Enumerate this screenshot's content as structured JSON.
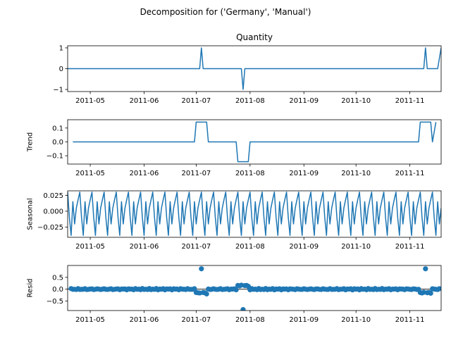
{
  "suptitle": "Decomposition for ('Germany', 'Manual')",
  "colors": {
    "line": "#1f77b4",
    "axis": "#000000",
    "background": "#ffffff"
  },
  "chart_data": [
    {
      "type": "line",
      "title": "Quantity",
      "ylabel": "",
      "xlim": [
        "2011-04-18",
        "2011-11-19"
      ],
      "ylim": [
        -1.1,
        1.1
      ],
      "yticks": [
        1,
        0,
        -1
      ],
      "ytick_labels": [
        "1",
        "0",
        "−1"
      ],
      "xticks": [
        "2011-05-01",
        "2011-06-01",
        "2011-07-01",
        "2011-08-01",
        "2011-09-01",
        "2011-10-01",
        "2011-11-01"
      ],
      "xtick_labels": [
        "2011-05",
        "2011-06",
        "2011-07",
        "2011-08",
        "2011-09",
        "2011-10",
        "2011-11"
      ],
      "series": [
        {
          "x": [
            "2011-04-18",
            "2011-07-03",
            "2011-07-04",
            "2011-07-05",
            "2011-07-27",
            "2011-07-28",
            "2011-07-29",
            "2011-11-09",
            "2011-11-10",
            "2011-11-11",
            "2011-11-17",
            "2011-11-19"
          ],
          "y": [
            0,
            0,
            1,
            0,
            0,
            -1,
            0,
            0,
            1,
            0,
            0,
            1
          ]
        }
      ]
    },
    {
      "type": "line",
      "title": "",
      "ylabel": "Trend",
      "xlim": [
        "2011-04-18",
        "2011-11-19"
      ],
      "ylim": [
        -0.16,
        0.16
      ],
      "yticks": [
        0.1,
        0.0,
        -0.1
      ],
      "ytick_labels": [
        "0.1",
        "0.0",
        "−0.1"
      ],
      "xticks": [
        "2011-05-01",
        "2011-06-01",
        "2011-07-01",
        "2011-08-01",
        "2011-09-01",
        "2011-10-01",
        "2011-11-01"
      ],
      "xtick_labels": [
        "2011-05",
        "2011-06",
        "2011-07",
        "2011-08",
        "2011-09",
        "2011-10",
        "2011-11"
      ],
      "series": [
        {
          "x": [
            "2011-04-21",
            "2011-06-30",
            "2011-07-01",
            "2011-07-07",
            "2011-07-08",
            "2011-07-24",
            "2011-07-25",
            "2011-07-31",
            "2011-08-01",
            "2011-11-06",
            "2011-11-07",
            "2011-11-13",
            "2011-11-14",
            "2011-11-16"
          ],
          "y": [
            0,
            0,
            0.143,
            0.143,
            0,
            0,
            -0.143,
            -0.143,
            0,
            0,
            0.143,
            0.143,
            0,
            0.143
          ]
        }
      ]
    },
    {
      "type": "line",
      "title": "",
      "ylabel": "Seasonal",
      "xlim": [
        "2011-04-18",
        "2011-11-19"
      ],
      "ylim": [
        -0.041,
        0.032
      ],
      "yticks": [
        0.025,
        0.0,
        -0.025
      ],
      "ytick_labels": [
        "0.025",
        "0.000",
        "−0.025"
      ],
      "xticks": [
        "2011-05-01",
        "2011-06-01",
        "2011-07-01",
        "2011-08-01",
        "2011-09-01",
        "2011-10-01",
        "2011-11-01"
      ],
      "xtick_labels": [
        "2011-05",
        "2011-06",
        "2011-07",
        "2011-08",
        "2011-09",
        "2011-10",
        "2011-11"
      ],
      "period_days": 7,
      "weekly_pattern": [
        0.03,
        -0.01,
        -0.038,
        0.015,
        -0.02,
        0.005,
        0.018
      ]
    },
    {
      "type": "scatter",
      "title": "",
      "ylabel": "Resid",
      "xlim": [
        "2011-04-18",
        "2011-11-19"
      ],
      "ylim": [
        -0.9,
        1.0
      ],
      "yticks": [
        0.5,
        0.0,
        -0.5
      ],
      "ytick_labels": [
        "0.5",
        "0.0",
        "−0.5"
      ],
      "xticks": [
        "2011-05-01",
        "2011-06-01",
        "2011-07-01",
        "2011-08-01",
        "2011-09-01",
        "2011-10-01",
        "2011-11-01"
      ],
      "xtick_labels": [
        "2011-05",
        "2011-06",
        "2011-07",
        "2011-08",
        "2011-09",
        "2011-10",
        "2011-11"
      ],
      "baseline": 0,
      "outliers": [
        {
          "x": "2011-07-04",
          "y": 0.86
        },
        {
          "x": "2011-07-28",
          "y": -0.86
        },
        {
          "x": "2011-11-10",
          "y": 0.86
        }
      ],
      "noted": [
        {
          "x": "2011-07-01",
          "y": -0.14
        },
        {
          "x": "2011-07-02",
          "y": -0.15
        },
        {
          "x": "2011-07-03",
          "y": -0.16
        },
        {
          "x": "2011-07-05",
          "y": -0.14
        },
        {
          "x": "2011-07-06",
          "y": -0.15
        },
        {
          "x": "2011-07-07",
          "y": -0.2
        },
        {
          "x": "2011-07-25",
          "y": 0.16
        },
        {
          "x": "2011-07-26",
          "y": 0.14
        },
        {
          "x": "2011-07-27",
          "y": 0.17
        },
        {
          "x": "2011-07-29",
          "y": 0.15
        },
        {
          "x": "2011-07-30",
          "y": 0.16
        },
        {
          "x": "2011-07-31",
          "y": 0.12
        },
        {
          "x": "2011-11-07",
          "y": -0.14
        },
        {
          "x": "2011-11-08",
          "y": -0.16
        },
        {
          "x": "2011-11-09",
          "y": -0.13
        },
        {
          "x": "2011-11-11",
          "y": -0.15
        },
        {
          "x": "2011-11-12",
          "y": -0.14
        },
        {
          "x": "2011-11-13",
          "y": -0.17
        }
      ],
      "small_residual_amplitude": 0.03
    }
  ]
}
